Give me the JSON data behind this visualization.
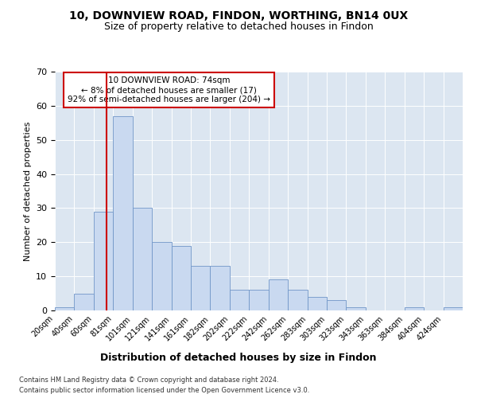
{
  "title1": "10, DOWNVIEW ROAD, FINDON, WORTHING, BN14 0UX",
  "title2": "Size of property relative to detached houses in Findon",
  "xlabel": "Distribution of detached houses by size in Findon",
  "ylabel": "Number of detached properties",
  "footer1": "Contains HM Land Registry data © Crown copyright and database right 2024.",
  "footer2": "Contains public sector information licensed under the Open Government Licence v3.0.",
  "annotation_line1": "10 DOWNVIEW ROAD: 74sqm",
  "annotation_line2": "← 8% of detached houses are smaller (17)",
  "annotation_line3": "92% of semi-detached houses are larger (204) →",
  "property_sqm": 74,
  "bar_color": "#c9d9f0",
  "bar_edge_color": "#7096c8",
  "redline_color": "#cc0000",
  "background_color": "#dce6f1",
  "categories": [
    "20sqm",
    "40sqm",
    "60sqm",
    "81sqm",
    "101sqm",
    "121sqm",
    "141sqm",
    "161sqm",
    "182sqm",
    "202sqm",
    "222sqm",
    "242sqm",
    "262sqm",
    "283sqm",
    "303sqm",
    "323sqm",
    "343sqm",
    "363sqm",
    "384sqm",
    "404sqm",
    "424sqm"
  ],
  "bin_edges": [
    20,
    40,
    60,
    81,
    101,
    121,
    141,
    161,
    182,
    202,
    222,
    242,
    262,
    283,
    303,
    323,
    343,
    363,
    384,
    404,
    424,
    444
  ],
  "values": [
    1,
    5,
    29,
    57,
    30,
    20,
    19,
    13,
    13,
    6,
    6,
    9,
    6,
    4,
    3,
    1,
    0,
    0,
    1,
    0,
    1
  ],
  "ylim": [
    0,
    70
  ],
  "yticks": [
    0,
    10,
    20,
    30,
    40,
    50,
    60,
    70
  ],
  "n_bars": 21
}
